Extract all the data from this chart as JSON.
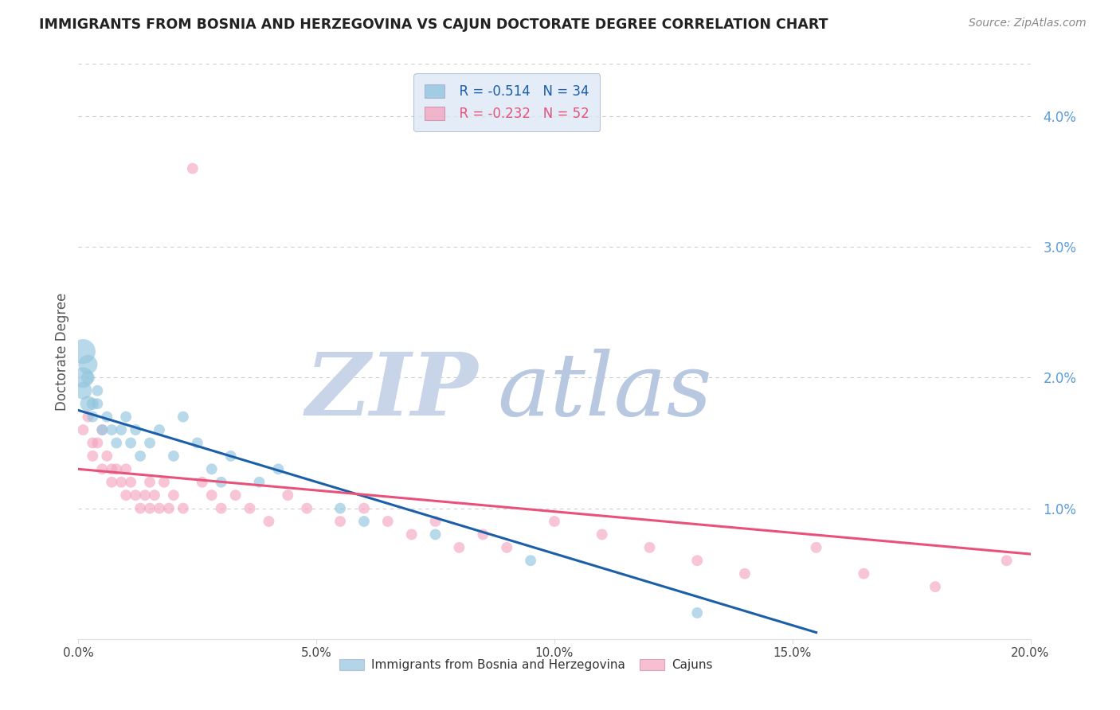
{
  "title": "IMMIGRANTS FROM BOSNIA AND HERZEGOVINA VS CAJUN DOCTORATE DEGREE CORRELATION CHART",
  "source": "Source: ZipAtlas.com",
  "ylabel": "Doctorate Degree",
  "xlim": [
    0.0,
    0.2
  ],
  "ylim": [
    0.0,
    0.044
  ],
  "xticks": [
    0.0,
    0.05,
    0.1,
    0.15,
    0.2
  ],
  "xtick_labels": [
    "0.0%",
    "5.0%",
    "10.0%",
    "15.0%",
    "20.0%"
  ],
  "yticks_right": [
    0.01,
    0.02,
    0.03,
    0.04
  ],
  "ytick_right_labels": [
    "1.0%",
    "2.0%",
    "3.0%",
    "4.0%"
  ],
  "blue_label": "Immigrants from Bosnia and Herzegovina",
  "pink_label": "Cajuns",
  "blue_R": "R = -0.514",
  "blue_N": "N = 34",
  "pink_R": "R = -0.232",
  "pink_N": "N = 52",
  "blue_color": "#92c5de",
  "pink_color": "#f4a6c0",
  "line_blue_color": "#1a5fa8",
  "line_pink_color": "#e8527a",
  "watermark_zip_color": "#c8d4e8",
  "watermark_atlas_color": "#b8c8e0",
  "background_color": "#ffffff",
  "grid_color": "#cccccc",
  "title_color": "#222222",
  "axis_label_color": "#555555",
  "right_axis_color": "#5b9bd5",
  "legend_box_color": "#dce8f5",
  "blue_scatter_x": [
    0.001,
    0.001,
    0.001,
    0.002,
    0.002,
    0.002,
    0.003,
    0.003,
    0.004,
    0.004,
    0.005,
    0.006,
    0.007,
    0.008,
    0.009,
    0.01,
    0.011,
    0.012,
    0.013,
    0.015,
    0.017,
    0.02,
    0.022,
    0.025,
    0.028,
    0.03,
    0.032,
    0.038,
    0.042,
    0.055,
    0.06,
    0.075,
    0.095,
    0.13
  ],
  "blue_scatter_y": [
    0.022,
    0.02,
    0.019,
    0.021,
    0.018,
    0.02,
    0.018,
    0.017,
    0.019,
    0.018,
    0.016,
    0.017,
    0.016,
    0.015,
    0.016,
    0.017,
    0.015,
    0.016,
    0.014,
    0.015,
    0.016,
    0.014,
    0.017,
    0.015,
    0.013,
    0.012,
    0.014,
    0.012,
    0.013,
    0.01,
    0.009,
    0.008,
    0.006,
    0.002
  ],
  "blue_scatter_sizes": [
    500,
    350,
    250,
    300,
    200,
    150,
    120,
    100,
    100,
    100,
    100,
    100,
    100,
    100,
    100,
    100,
    100,
    100,
    100,
    100,
    100,
    100,
    100,
    100,
    100,
    100,
    100,
    100,
    100,
    100,
    100,
    100,
    100,
    100
  ],
  "pink_scatter_x": [
    0.001,
    0.002,
    0.003,
    0.003,
    0.004,
    0.005,
    0.005,
    0.006,
    0.007,
    0.007,
    0.008,
    0.009,
    0.01,
    0.01,
    0.011,
    0.012,
    0.013,
    0.014,
    0.015,
    0.015,
    0.016,
    0.017,
    0.018,
    0.019,
    0.02,
    0.022,
    0.024,
    0.026,
    0.028,
    0.03,
    0.033,
    0.036,
    0.04,
    0.044,
    0.048,
    0.055,
    0.06,
    0.065,
    0.07,
    0.075,
    0.08,
    0.085,
    0.09,
    0.1,
    0.11,
    0.12,
    0.13,
    0.14,
    0.155,
    0.165,
    0.18,
    0.195
  ],
  "pink_scatter_y": [
    0.016,
    0.017,
    0.015,
    0.014,
    0.015,
    0.016,
    0.013,
    0.014,
    0.013,
    0.012,
    0.013,
    0.012,
    0.011,
    0.013,
    0.012,
    0.011,
    0.01,
    0.011,
    0.012,
    0.01,
    0.011,
    0.01,
    0.012,
    0.01,
    0.011,
    0.01,
    0.036,
    0.012,
    0.011,
    0.01,
    0.011,
    0.01,
    0.009,
    0.011,
    0.01,
    0.009,
    0.01,
    0.009,
    0.008,
    0.009,
    0.007,
    0.008,
    0.007,
    0.009,
    0.008,
    0.007,
    0.006,
    0.005,
    0.007,
    0.005,
    0.004,
    0.006
  ],
  "pink_scatter_sizes": [
    100,
    100,
    100,
    100,
    100,
    100,
    100,
    100,
    100,
    100,
    100,
    100,
    100,
    100,
    100,
    100,
    100,
    100,
    100,
    100,
    100,
    100,
    100,
    100,
    100,
    100,
    100,
    100,
    100,
    100,
    100,
    100,
    100,
    100,
    100,
    100,
    100,
    100,
    100,
    100,
    100,
    100,
    100,
    100,
    100,
    100,
    100,
    100,
    100,
    100,
    100,
    100
  ],
  "blue_trend_x": [
    0.0,
    0.155
  ],
  "blue_trend_y": [
    0.0175,
    0.0005
  ],
  "pink_trend_x": [
    0.0,
    0.2
  ],
  "pink_trend_y": [
    0.013,
    0.0065
  ]
}
